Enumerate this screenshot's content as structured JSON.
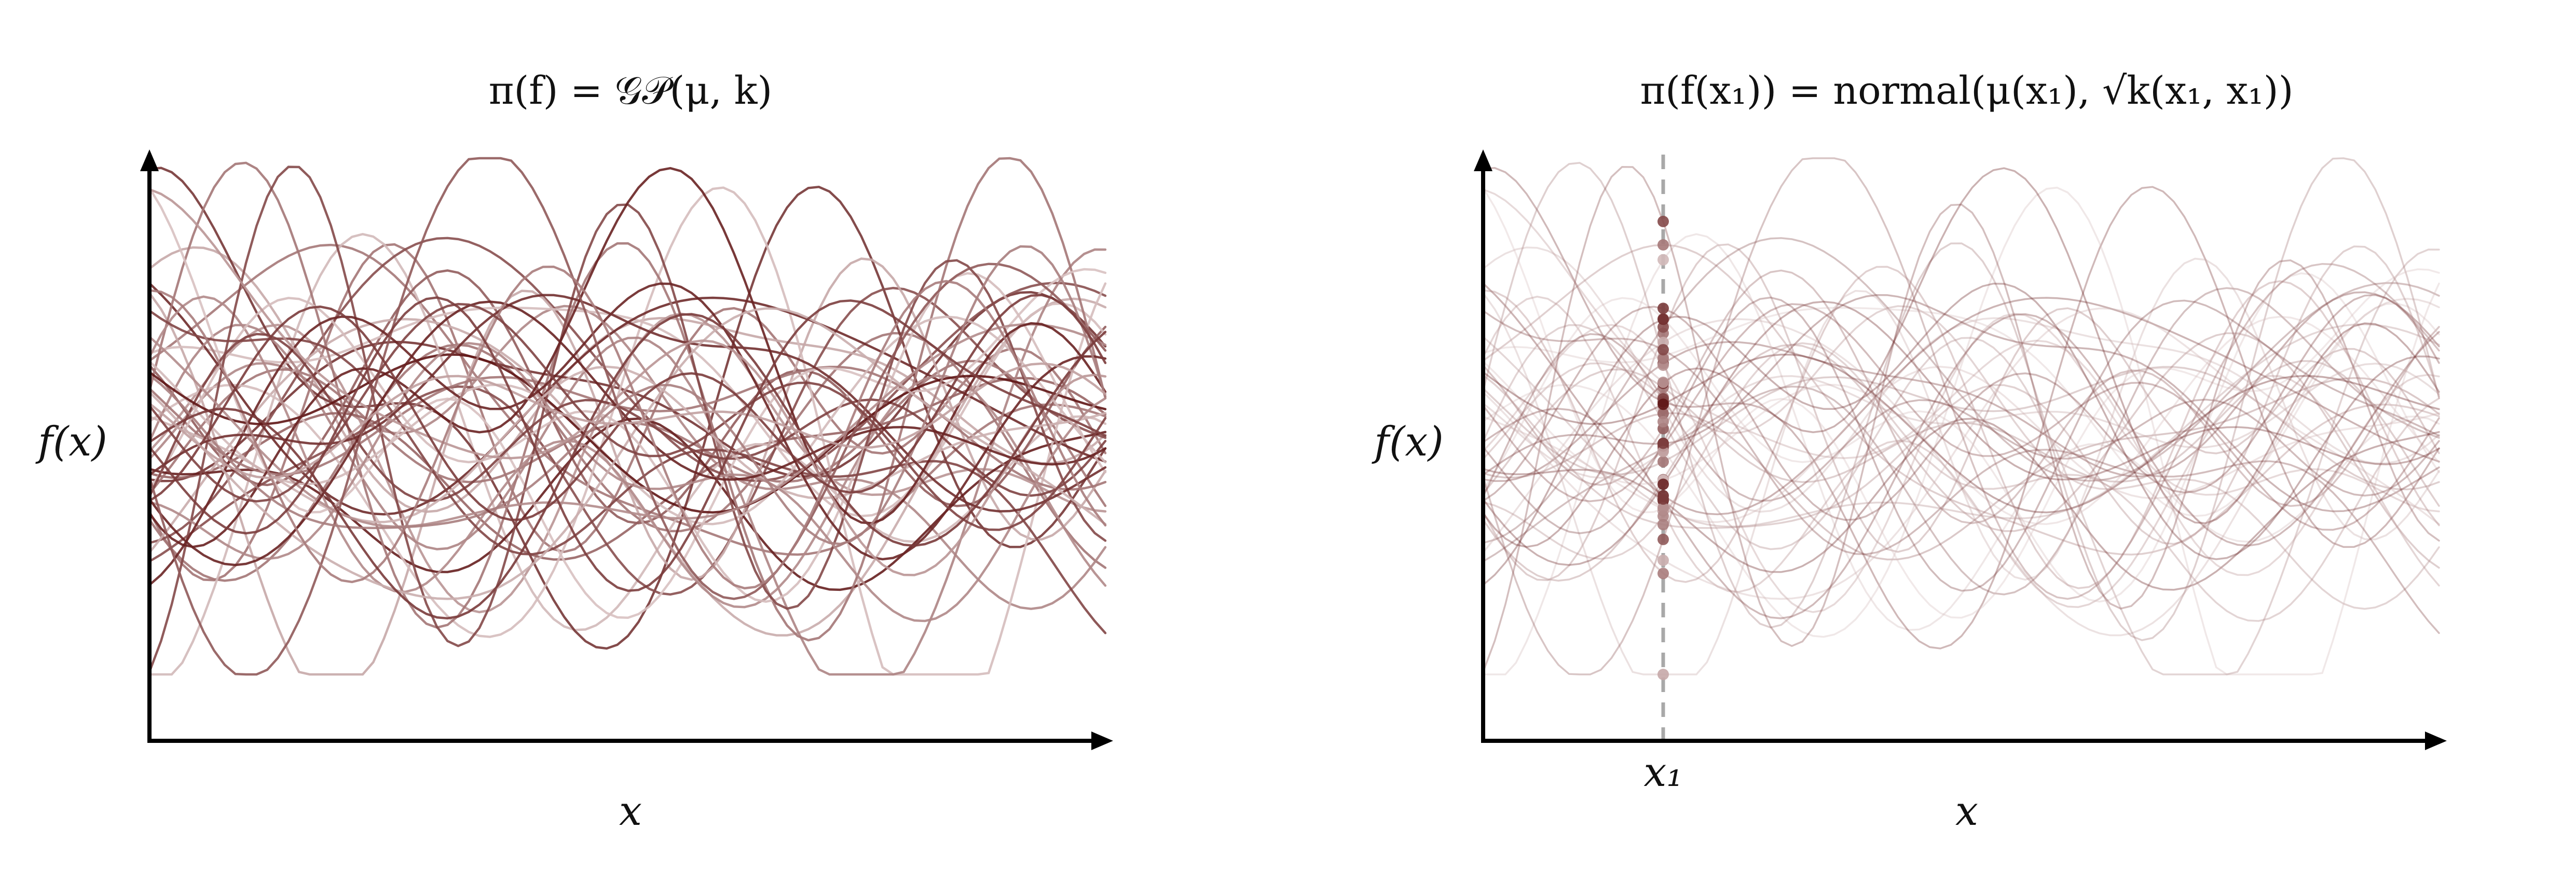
{
  "colors": {
    "curve_dark": "#5a1010",
    "curve_light": "#d8c4c4",
    "axis": "#000000",
    "guide": "#a8a8a8"
  },
  "panels": [
    {
      "title": "π(f) = 𝒢𝒫(μ, k)",
      "y_label": "f(x)",
      "x_label": "x"
    },
    {
      "title": "π(f(x₁)) = normal(μ(x₁), √k(x₁, x₁))",
      "y_label": "f(x)",
      "x_label": "x",
      "marker_label": "x₁"
    }
  ]
}
